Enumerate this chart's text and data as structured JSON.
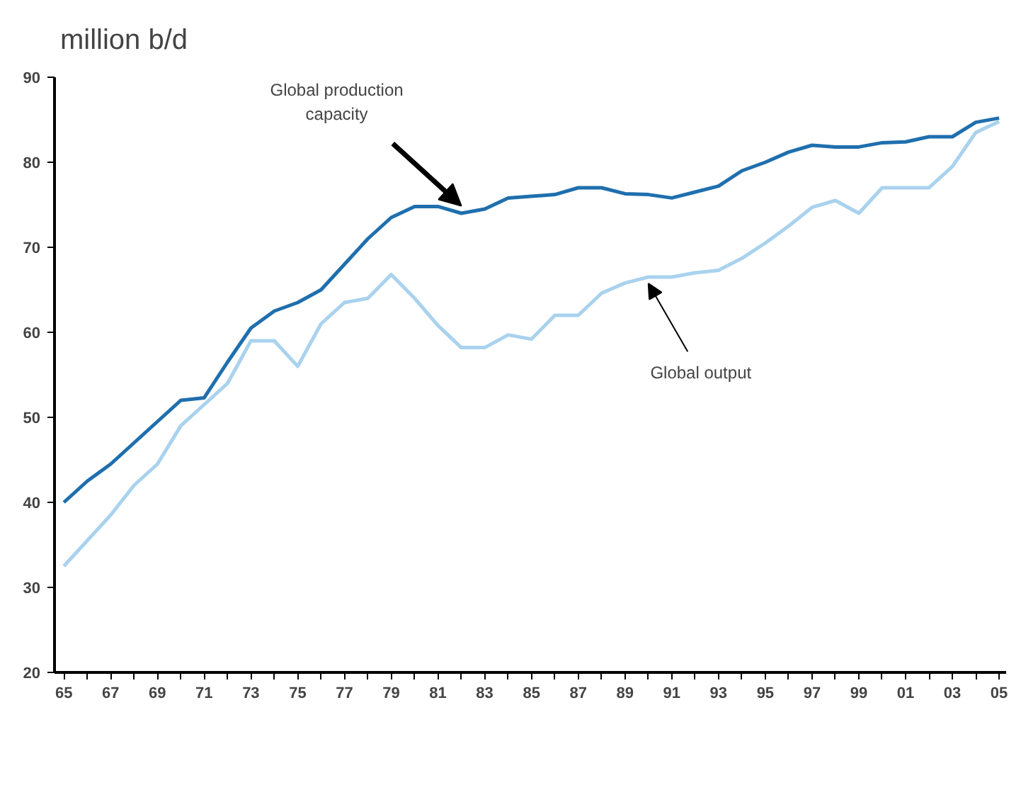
{
  "chart_data": {
    "type": "line",
    "title": "million b/d",
    "x": [
      1965,
      1966,
      1967,
      1968,
      1969,
      1970,
      1971,
      1972,
      1973,
      1974,
      1975,
      1976,
      1977,
      1978,
      1979,
      1980,
      1981,
      1982,
      1983,
      1984,
      1985,
      1986,
      1987,
      1988,
      1989,
      1990,
      1991,
      1992,
      1993,
      1994,
      1995,
      1996,
      1997,
      1998,
      1999,
      2000,
      2001,
      2002,
      2003,
      2004,
      2005
    ],
    "series": [
      {
        "color": "#1f6fae",
        "values": [
          40,
          42.5,
          44.5,
          47,
          49.5,
          52,
          52.3,
          56.5,
          60.5,
          62.5,
          63.5,
          65,
          68,
          71,
          73.5,
          74.8,
          74.8,
          74,
          74.5,
          75.8,
          76,
          76.2,
          77,
          77,
          76.3,
          76.2,
          75.8,
          76.5,
          77.2,
          79,
          80,
          81.2,
          82,
          81.8,
          81.8,
          82.3,
          82.4,
          83,
          83,
          84.7,
          85.2
        ]
      },
      {
        "color": "#a9d2ee",
        "values": [
          32.5,
          35.5,
          38.5,
          42,
          44.5,
          49,
          51.5,
          54,
          59,
          59,
          56,
          61,
          63.5,
          64,
          66.8,
          64,
          60.8,
          58.2,
          58.2,
          59.7,
          59.2,
          62,
          62,
          64.6,
          65.8,
          66.5,
          66.5,
          67,
          67.3,
          68.7,
          70.5,
          72.5,
          74.7,
          75.5,
          74,
          77,
          77,
          77,
          79.5,
          83.5,
          84.8
        ]
      }
    ],
    "annotations": [
      {
        "text": "Global production\ncapacity",
        "x": 1982,
        "y": 74.2
      },
      {
        "text": "Global output",
        "x": 1990,
        "y": 66.4
      }
    ],
    "xlim": [
      1964.6,
      2005.3
    ],
    "ylim": [
      20,
      90
    ],
    "xticks": [
      {
        "value": 1965,
        "label": "65"
      },
      {
        "value": 1966,
        "label": null
      },
      {
        "value": 1967,
        "label": "67"
      },
      {
        "value": 1968,
        "label": null
      },
      {
        "value": 1969,
        "label": "69"
      },
      {
        "value": 1970,
        "label": null
      },
      {
        "value": 1971,
        "label": "71"
      },
      {
        "value": 1972,
        "label": null
      },
      {
        "value": 1973,
        "label": "73"
      },
      {
        "value": 1974,
        "label": null
      },
      {
        "value": 1975,
        "label": "75"
      },
      {
        "value": 1976,
        "label": null
      },
      {
        "value": 1977,
        "label": "77"
      },
      {
        "value": 1978,
        "label": null
      },
      {
        "value": 1979,
        "label": "79"
      },
      {
        "value": 1980,
        "label": null
      },
      {
        "value": 1981,
        "label": "81"
      },
      {
        "value": 1982,
        "label": null
      },
      {
        "value": 1983,
        "label": "83"
      },
      {
        "value": 1984,
        "label": null
      },
      {
        "value": 1985,
        "label": "85"
      },
      {
        "value": 1986,
        "label": null
      },
      {
        "value": 1987,
        "label": "87"
      },
      {
        "value": 1988,
        "label": null
      },
      {
        "value": 1989,
        "label": "89"
      },
      {
        "value": 1990,
        "label": null
      },
      {
        "value": 1991,
        "label": "91"
      },
      {
        "value": 1992,
        "label": null
      },
      {
        "value": 1993,
        "label": "93"
      },
      {
        "value": 1994,
        "label": null
      },
      {
        "value": 1995,
        "label": "95"
      },
      {
        "value": 1996,
        "label": null
      },
      {
        "value": 1997,
        "label": "97"
      },
      {
        "value": 1998,
        "label": null
      },
      {
        "value": 1999,
        "label": "99"
      },
      {
        "value": 2000,
        "label": null
      },
      {
        "value": 2001,
        "label": "01"
      },
      {
        "value": 2002,
        "label": null
      },
      {
        "value": 2003,
        "label": "03"
      },
      {
        "value": 2004,
        "label": null
      },
      {
        "value": 2005,
        "label": "05"
      }
    ],
    "yticks": [
      20,
      30,
      40,
      50,
      60,
      70,
      80,
      90
    ],
    "grid": false,
    "line_style": "solid",
    "marker": "none"
  }
}
